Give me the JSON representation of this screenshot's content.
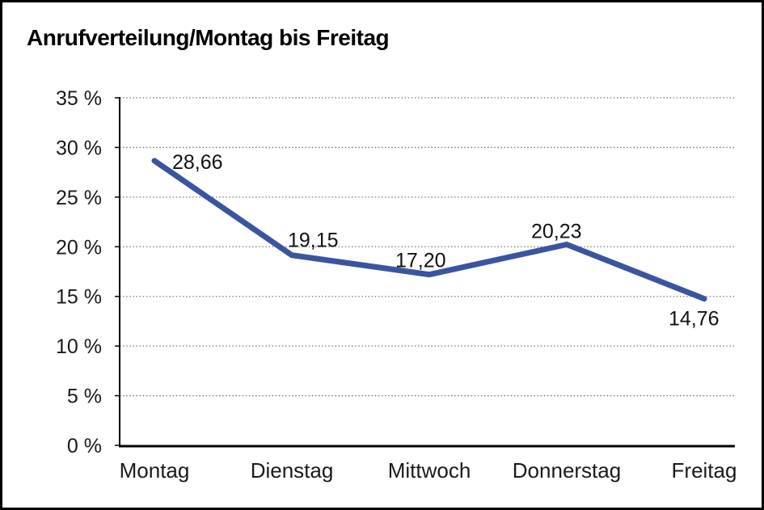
{
  "window": {
    "background": "#ffffff",
    "frame_border_color": "#000000"
  },
  "chart_data": {
    "type": "line",
    "title": "Anrufverteilung/Montag bis Freitag",
    "categories": [
      "Montag",
      "Dienstag",
      "Mittwoch",
      "Donnerstag",
      "Freitag"
    ],
    "values": [
      28.66,
      19.15,
      17.2,
      20.23,
      14.76
    ],
    "point_labels": [
      "28,66",
      "19,15",
      "17,20",
      "20,23",
      "14,76"
    ],
    "xlabel": "",
    "ylabel": "",
    "ylim": [
      0,
      35
    ],
    "ytick_step": 5,
    "ytick_labels": [
      "0 %",
      "5 %",
      "10 %",
      "15 %",
      "20 %",
      "25 %",
      "30 %",
      "35 %"
    ],
    "grid": "horizontal-dotted",
    "legend_position": "none",
    "colors": {
      "line": "#3A55A0",
      "title_text": "#000000",
      "axis_text": "#1a1a1a",
      "grid_line": "#777777",
      "axis_line": "#000000"
    }
  }
}
